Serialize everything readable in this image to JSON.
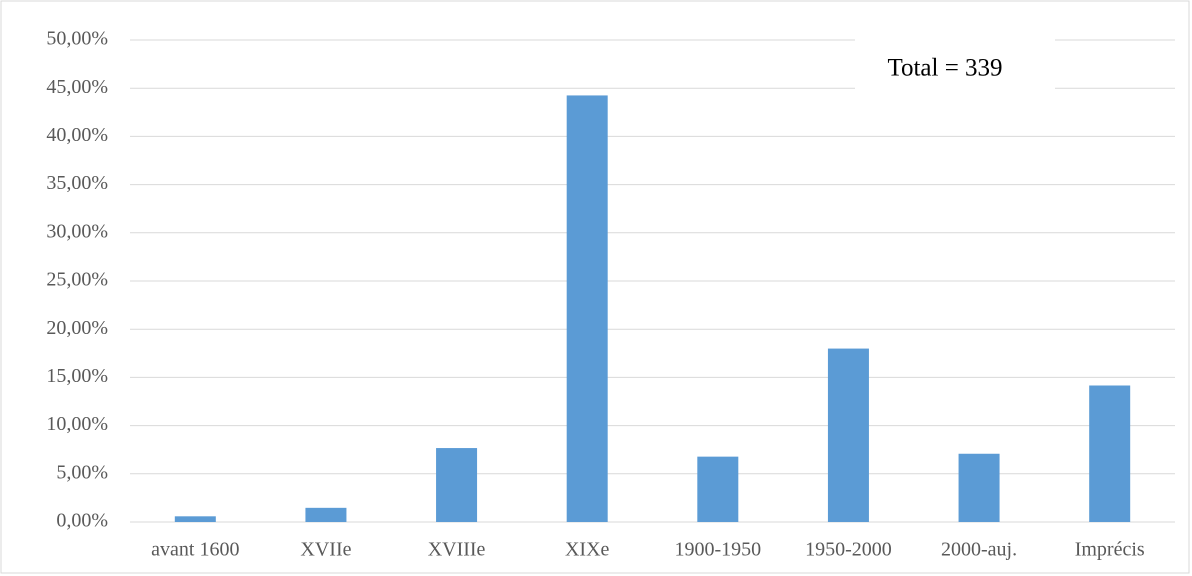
{
  "chart_data": {
    "type": "bar",
    "categories": [
      "avant 1600",
      "XVIIe",
      "XVIIIe",
      "XIXe",
      "1900-1950",
      "1950-2000",
      "2000-auj.",
      "Imprécis"
    ],
    "values": [
      0.59,
      1.47,
      7.67,
      44.25,
      6.78,
      17.99,
      7.08,
      14.16
    ],
    "color": "#5b9bd5",
    "ylim": [
      0,
      50
    ],
    "yticks": [
      {
        "value": 0,
        "label": "0,00%"
      },
      {
        "value": 5,
        "label": "5,00%"
      },
      {
        "value": 10,
        "label": "10,00%"
      },
      {
        "value": 15,
        "label": "15,00%"
      },
      {
        "value": 20,
        "label": "20,00%"
      },
      {
        "value": 25,
        "label": "25,00%"
      },
      {
        "value": 30,
        "label": "30,00%"
      },
      {
        "value": 35,
        "label": "35,00%"
      },
      {
        "value": 40,
        "label": "40,00%"
      },
      {
        "value": 45,
        "label": "45,00%"
      },
      {
        "value": 50,
        "label": "50,00%"
      }
    ],
    "grid": true,
    "annotation": "Total = 339"
  }
}
